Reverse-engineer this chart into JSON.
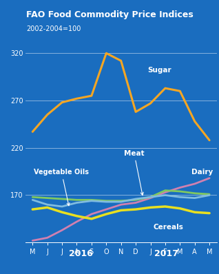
{
  "title": "FAO Food Commodity Price Indices",
  "title_bg": "#1e2f80",
  "bg_color": "#1a6dbf",
  "subtitle": "2002-2004=100",
  "x_labels": [
    "M",
    "J",
    "J",
    "A",
    "S",
    "O",
    "N",
    "D",
    "J",
    "F",
    "M",
    "A",
    "M"
  ],
  "ylim": [
    120,
    340
  ],
  "yticks": [
    120,
    170,
    220,
    270,
    320
  ],
  "sugar": [
    237,
    255,
    268,
    272,
    275,
    320,
    312,
    258,
    267,
    283,
    280,
    248,
    228
  ],
  "dairy": [
    122,
    125,
    133,
    142,
    150,
    155,
    160,
    162,
    167,
    173,
    178,
    182,
    188
  ],
  "meat": [
    168,
    167,
    166,
    165,
    165,
    164,
    164,
    165,
    168,
    175,
    174,
    172,
    171
  ],
  "vegetable_oils": [
    165,
    160,
    158,
    162,
    164,
    163,
    163,
    166,
    168,
    170,
    168,
    167,
    170
  ],
  "cereals": [
    155,
    157,
    152,
    148,
    145,
    150,
    154,
    155,
    157,
    158,
    156,
    152,
    151
  ],
  "sugar_color": "#f5a623",
  "dairy_color": "#d080b0",
  "meat_color": "#80c860",
  "veg_oils_color": "#80bce0",
  "cereals_color": "#e8e020",
  "text_color": "white"
}
